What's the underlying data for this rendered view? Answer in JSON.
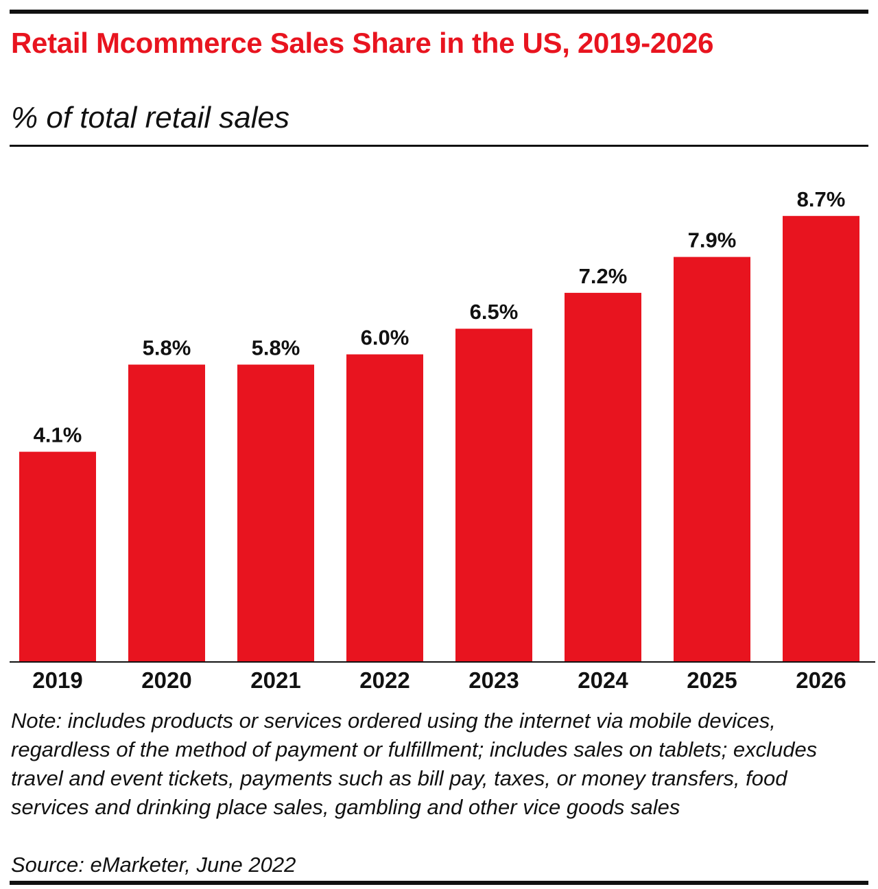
{
  "header": {
    "title": "Retail Mcommerce Sales Share in the US, 2019-2026",
    "subtitle": "% of total retail sales"
  },
  "chart_data": {
    "type": "bar",
    "title": "Retail Mcommerce Sales Share in the US, 2019-2026",
    "subtitle": "% of total retail sales",
    "categories": [
      "2019",
      "2020",
      "2021",
      "2022",
      "2023",
      "2024",
      "2025",
      "2026"
    ],
    "values": [
      4.1,
      5.8,
      5.8,
      6.0,
      6.5,
      7.2,
      7.9,
      8.7
    ],
    "value_labels": [
      "4.1%",
      "5.8%",
      "5.8%",
      "6.0%",
      "6.5%",
      "7.2%",
      "7.9%",
      "8.7%"
    ],
    "xlabel": "",
    "ylabel": "",
    "ylim": [
      0,
      9.5
    ],
    "grid": false,
    "legend": "none",
    "bar_color": "#e8141f"
  },
  "footer": {
    "note": "Note: includes products or services ordered using the internet via mobile devices, regardless of the method of payment or fulfillment; includes sales on tablets; excludes travel and event tickets, payments such as bill pay, taxes, or money transfers, food services and drinking place sales, gambling and other vice goods sales",
    "source": "Source: eMarketer, June 2022"
  },
  "colors": {
    "accent": "#e8141f",
    "text": "#111111",
    "background": "#ffffff"
  }
}
